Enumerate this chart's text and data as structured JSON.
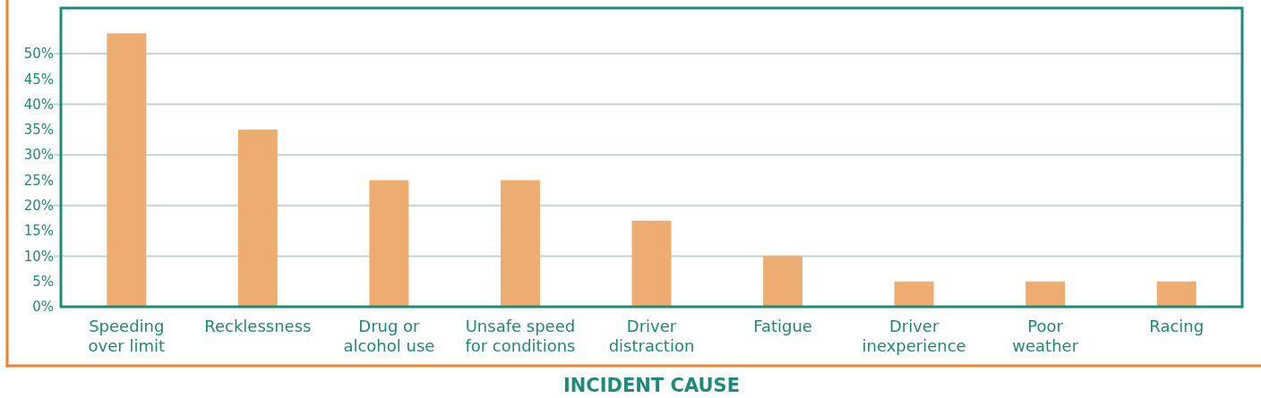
{
  "chart_data": {
    "type": "bar",
    "xlabel": "INCIDENT CAUSE",
    "categories": [
      "Speeding\nover limit",
      "Recklessness",
      "Drug or\nalcohol use",
      "Unsafe speed\nfor conditions",
      "Driver\ndistraction",
      "Fatigue",
      "Driver\ninexperience",
      "Poor\nweather",
      "Racing"
    ],
    "values": [
      54,
      35,
      25,
      25,
      17,
      10,
      5,
      5,
      5
    ],
    "color": "#edac70",
    "ylim": [
      0,
      59
    ],
    "yticks": [
      {
        "value": 0,
        "label": "0%"
      },
      {
        "value": 5,
        "label": "5%"
      },
      {
        "value": 10,
        "label": "10%"
      },
      {
        "value": 15,
        "label": "15%"
      },
      {
        "value": 20,
        "label": "20%"
      },
      {
        "value": 25,
        "label": "25%"
      },
      {
        "value": 30,
        "label": "30%"
      },
      {
        "value": 35,
        "label": "35%"
      },
      {
        "value": 40,
        "label": "40%"
      },
      {
        "value": 45,
        "label": "45%"
      },
      {
        "value": 50,
        "label": "50%"
      }
    ],
    "grid": "y"
  }
}
